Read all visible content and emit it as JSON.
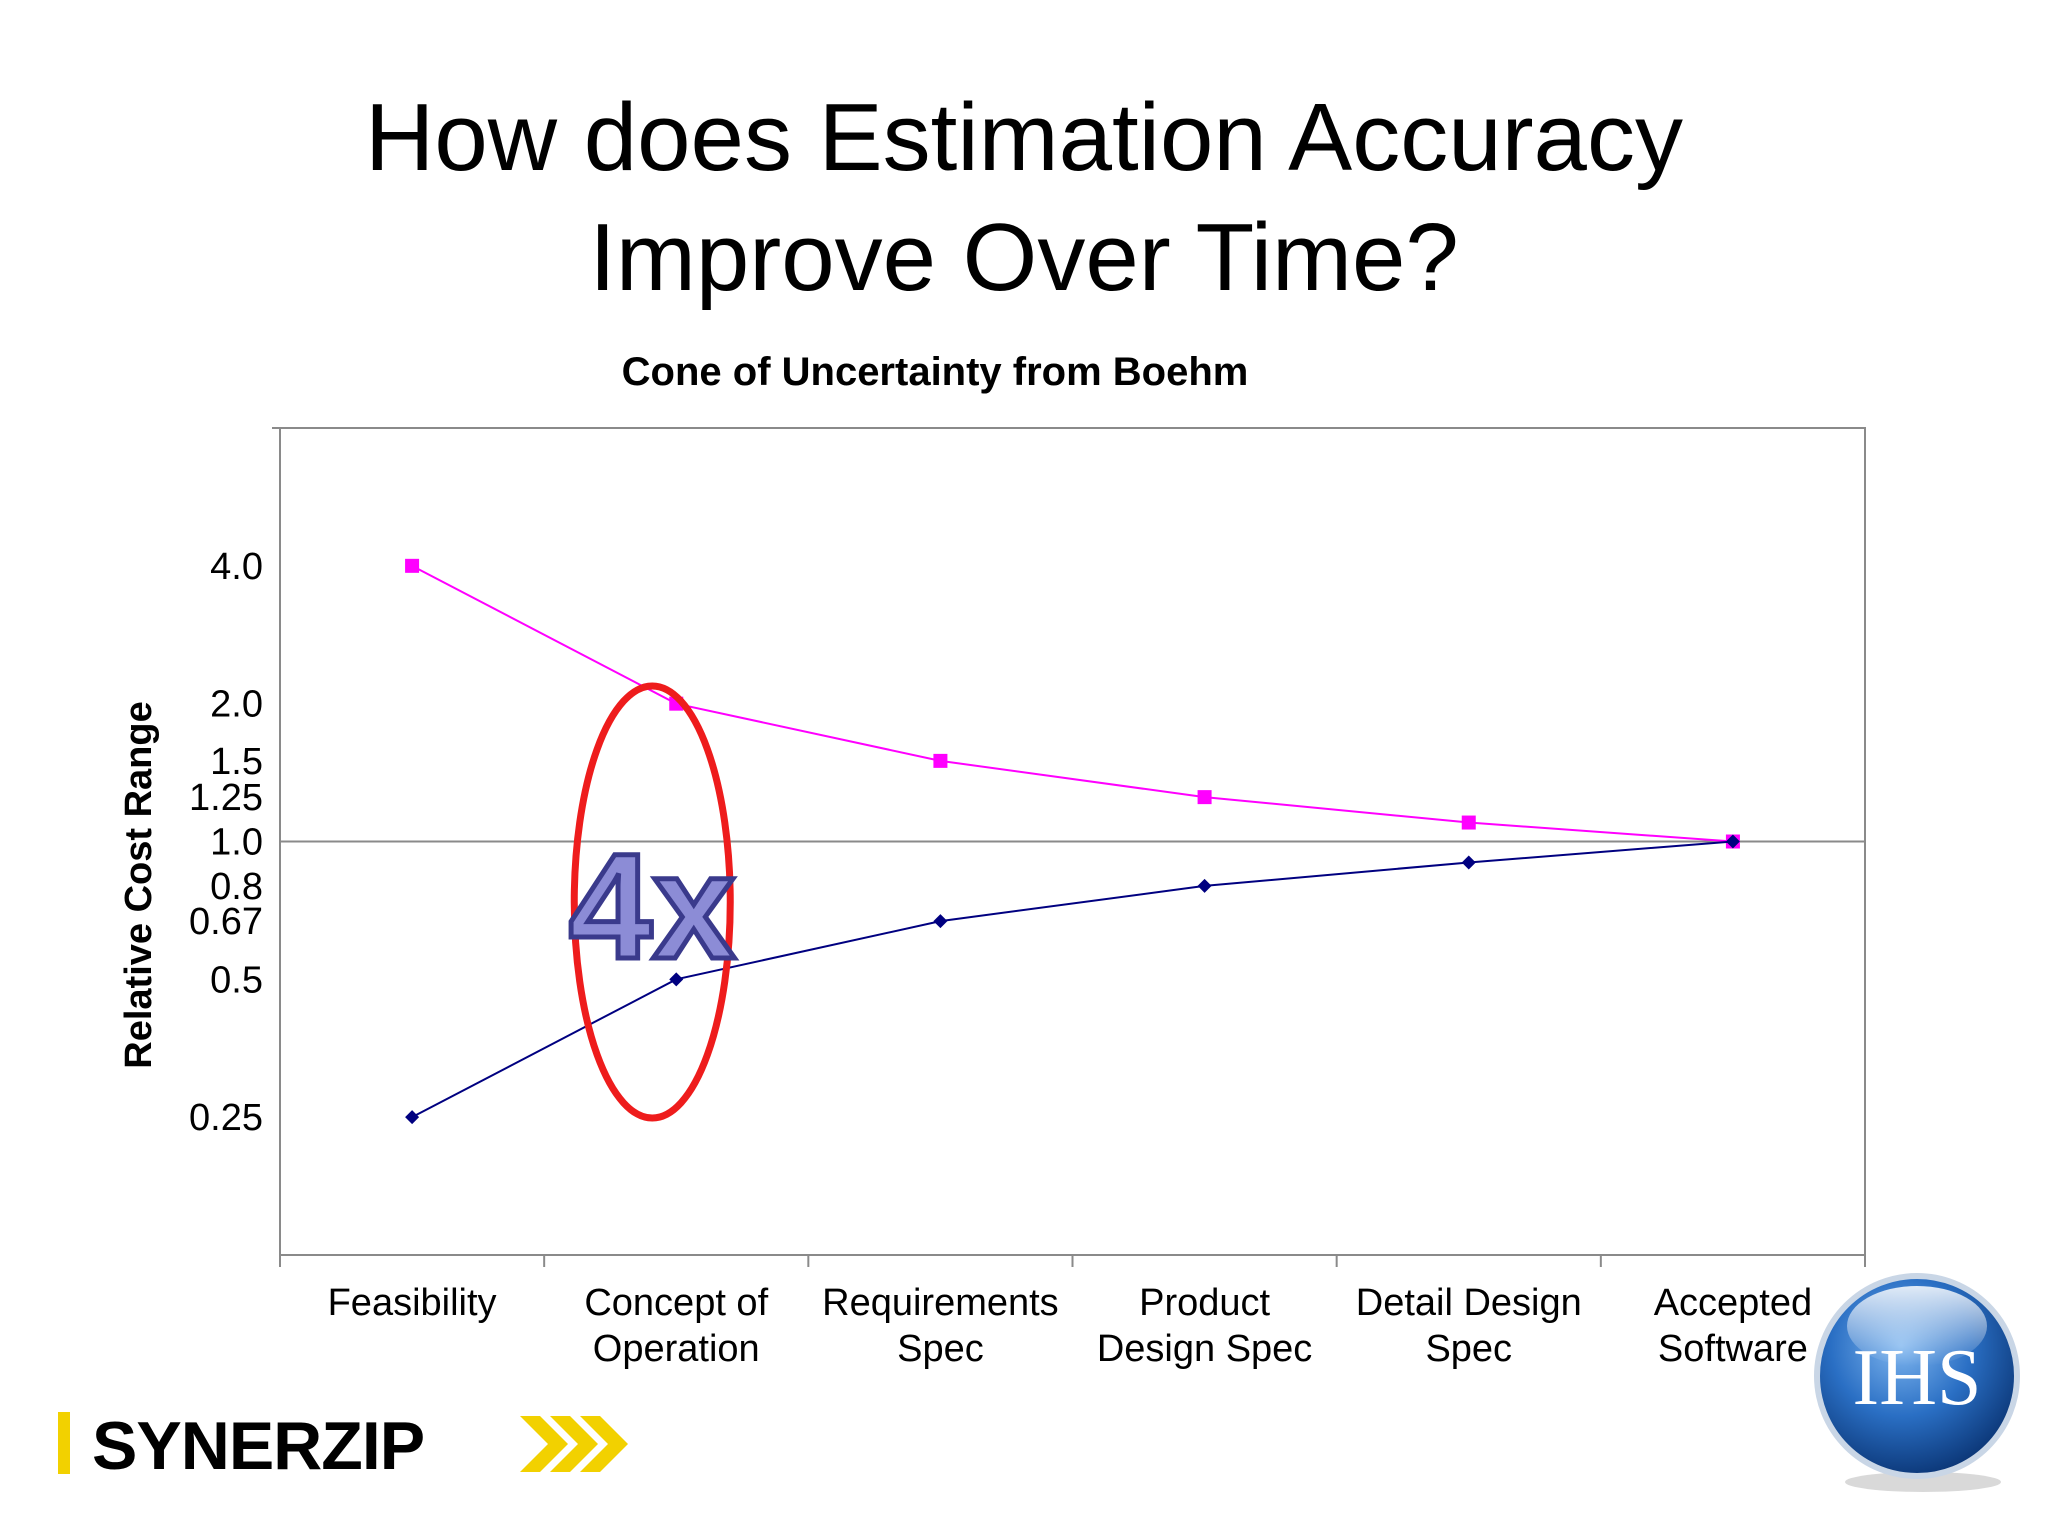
{
  "slide": {
    "title_line1": "How does Estimation Accuracy",
    "title_line2": "Improve Over Time?"
  },
  "chart_data": {
    "type": "line",
    "title": "Cone of Uncertainty from Boehm",
    "ylabel": "Relative Cost Range",
    "xlabel": "",
    "y_scale": "log",
    "ylim": [
      0.125,
      8.0
    ],
    "grid": false,
    "reference_line": 1.0,
    "categories": [
      "Feasibility",
      "Concept of Operation",
      "Requirements Spec",
      "Product Design Spec",
      "Detail Design Spec",
      "Accepted Software"
    ],
    "y_ticks": [
      {
        "value": 4.0,
        "label": "4.0"
      },
      {
        "value": 2.0,
        "label": "2.0"
      },
      {
        "value": 1.5,
        "label": "1.5"
      },
      {
        "value": 1.25,
        "label": "1.25"
      },
      {
        "value": 1.0,
        "label": "1.0"
      },
      {
        "value": 0.8,
        "label": "0.8"
      },
      {
        "value": 0.67,
        "label": "0.67"
      },
      {
        "value": 0.5,
        "label": "0.5"
      },
      {
        "value": 0.25,
        "label": "0.25"
      }
    ],
    "series": [
      {
        "values": [
          4.0,
          2.0,
          1.5,
          1.25,
          1.1,
          1.0
        ],
        "color": "#ff00ff",
        "marker": "square"
      },
      {
        "values": [
          0.25,
          0.5,
          0.67,
          0.8,
          0.9,
          1.0
        ],
        "color": "#000080",
        "marker": "diamond"
      }
    ],
    "annotation": {
      "text": "4x",
      "category_index": 1,
      "ellipse_color": "#ee1c1c",
      "text_fill": "#8c8cd6",
      "text_stroke": "#3a3a8c"
    }
  },
  "logos": {
    "synerzip": {
      "text": "SYNERZIP",
      "bar_color": "#f2d100",
      "chevron_color": "#f2d100"
    },
    "ihs": {
      "text": "IHS",
      "colors": [
        "#0b3d91",
        "#3f8ad8",
        "#ffffff"
      ]
    }
  }
}
